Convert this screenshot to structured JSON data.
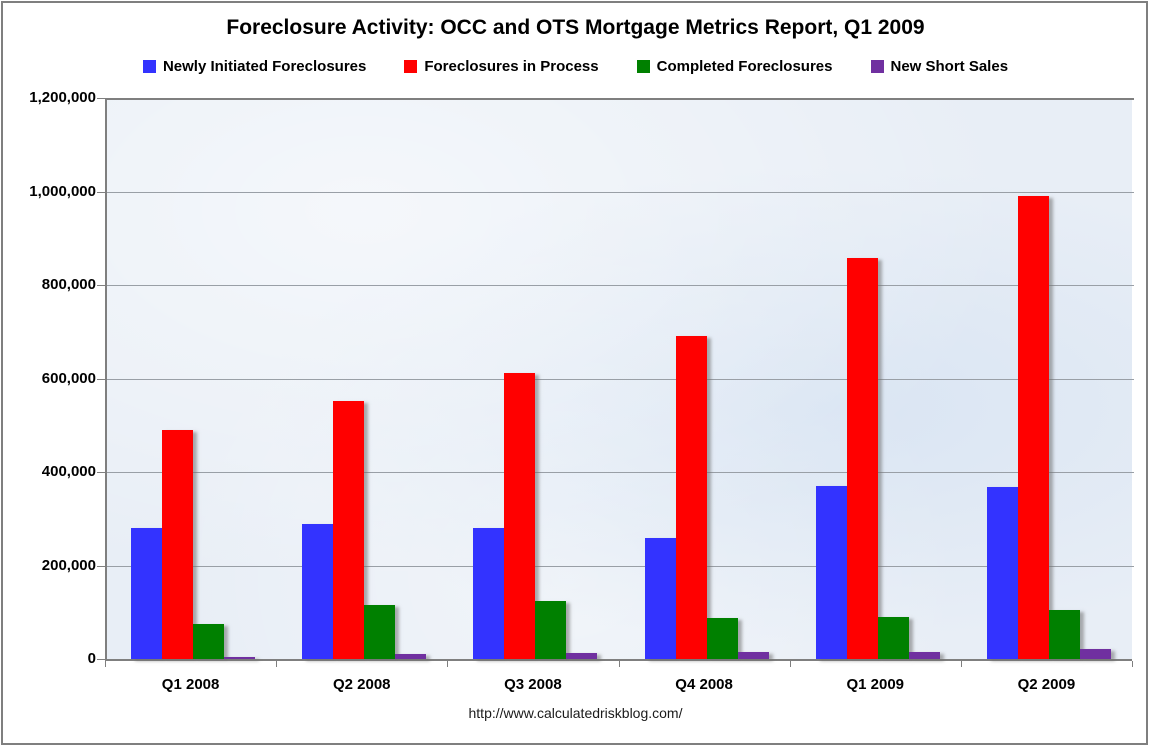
{
  "title": "Foreclosure Activity: OCC and OTS Mortgage Metrics Report, Q1 2009",
  "footer": {
    "source_url": "http://www.calculatedriskblog.com/"
  },
  "colors": {
    "plot_background": "#e8eef6",
    "gridline": "#999fa6",
    "axis": "#7f7f7f",
    "frame": "#7f7f7f",
    "text": "#000000"
  },
  "chart_data": {
    "type": "bar",
    "title": "Foreclosure Activity: OCC and OTS Mortgage Metrics Report, Q1 2009",
    "categories": [
      "Q1 2008",
      "Q2 2008",
      "Q3 2008",
      "Q4 2008",
      "Q1 2009",
      "Q2 2009"
    ],
    "series": [
      {
        "name": "Newly Initiated Foreclosures",
        "color": "#3333ff",
        "values": [
          280000,
          288000,
          280000,
          260000,
          370000,
          367000
        ]
      },
      {
        "name": "Foreclosures in Process",
        "color": "#ff0000",
        "values": [
          490000,
          552000,
          612000,
          690000,
          858000,
          990000
        ]
      },
      {
        "name": "Completed Foreclosures",
        "color": "#008000",
        "values": [
          75000,
          116000,
          124000,
          87000,
          89000,
          105000
        ]
      },
      {
        "name": "New Short Sales",
        "color": "#7030a0",
        "values": [
          5000,
          10000,
          12000,
          15000,
          15000,
          21000
        ]
      }
    ],
    "xlabel": "",
    "ylabel": "",
    "ylim": [
      0,
      1200000
    ],
    "ytick_step": 200000,
    "ytick_labels": [
      "1,200,000",
      "1,000,000",
      "800,000",
      "600,000",
      "400,000",
      "200,000",
      "0"
    ],
    "grid": true,
    "legend_position": "top"
  }
}
